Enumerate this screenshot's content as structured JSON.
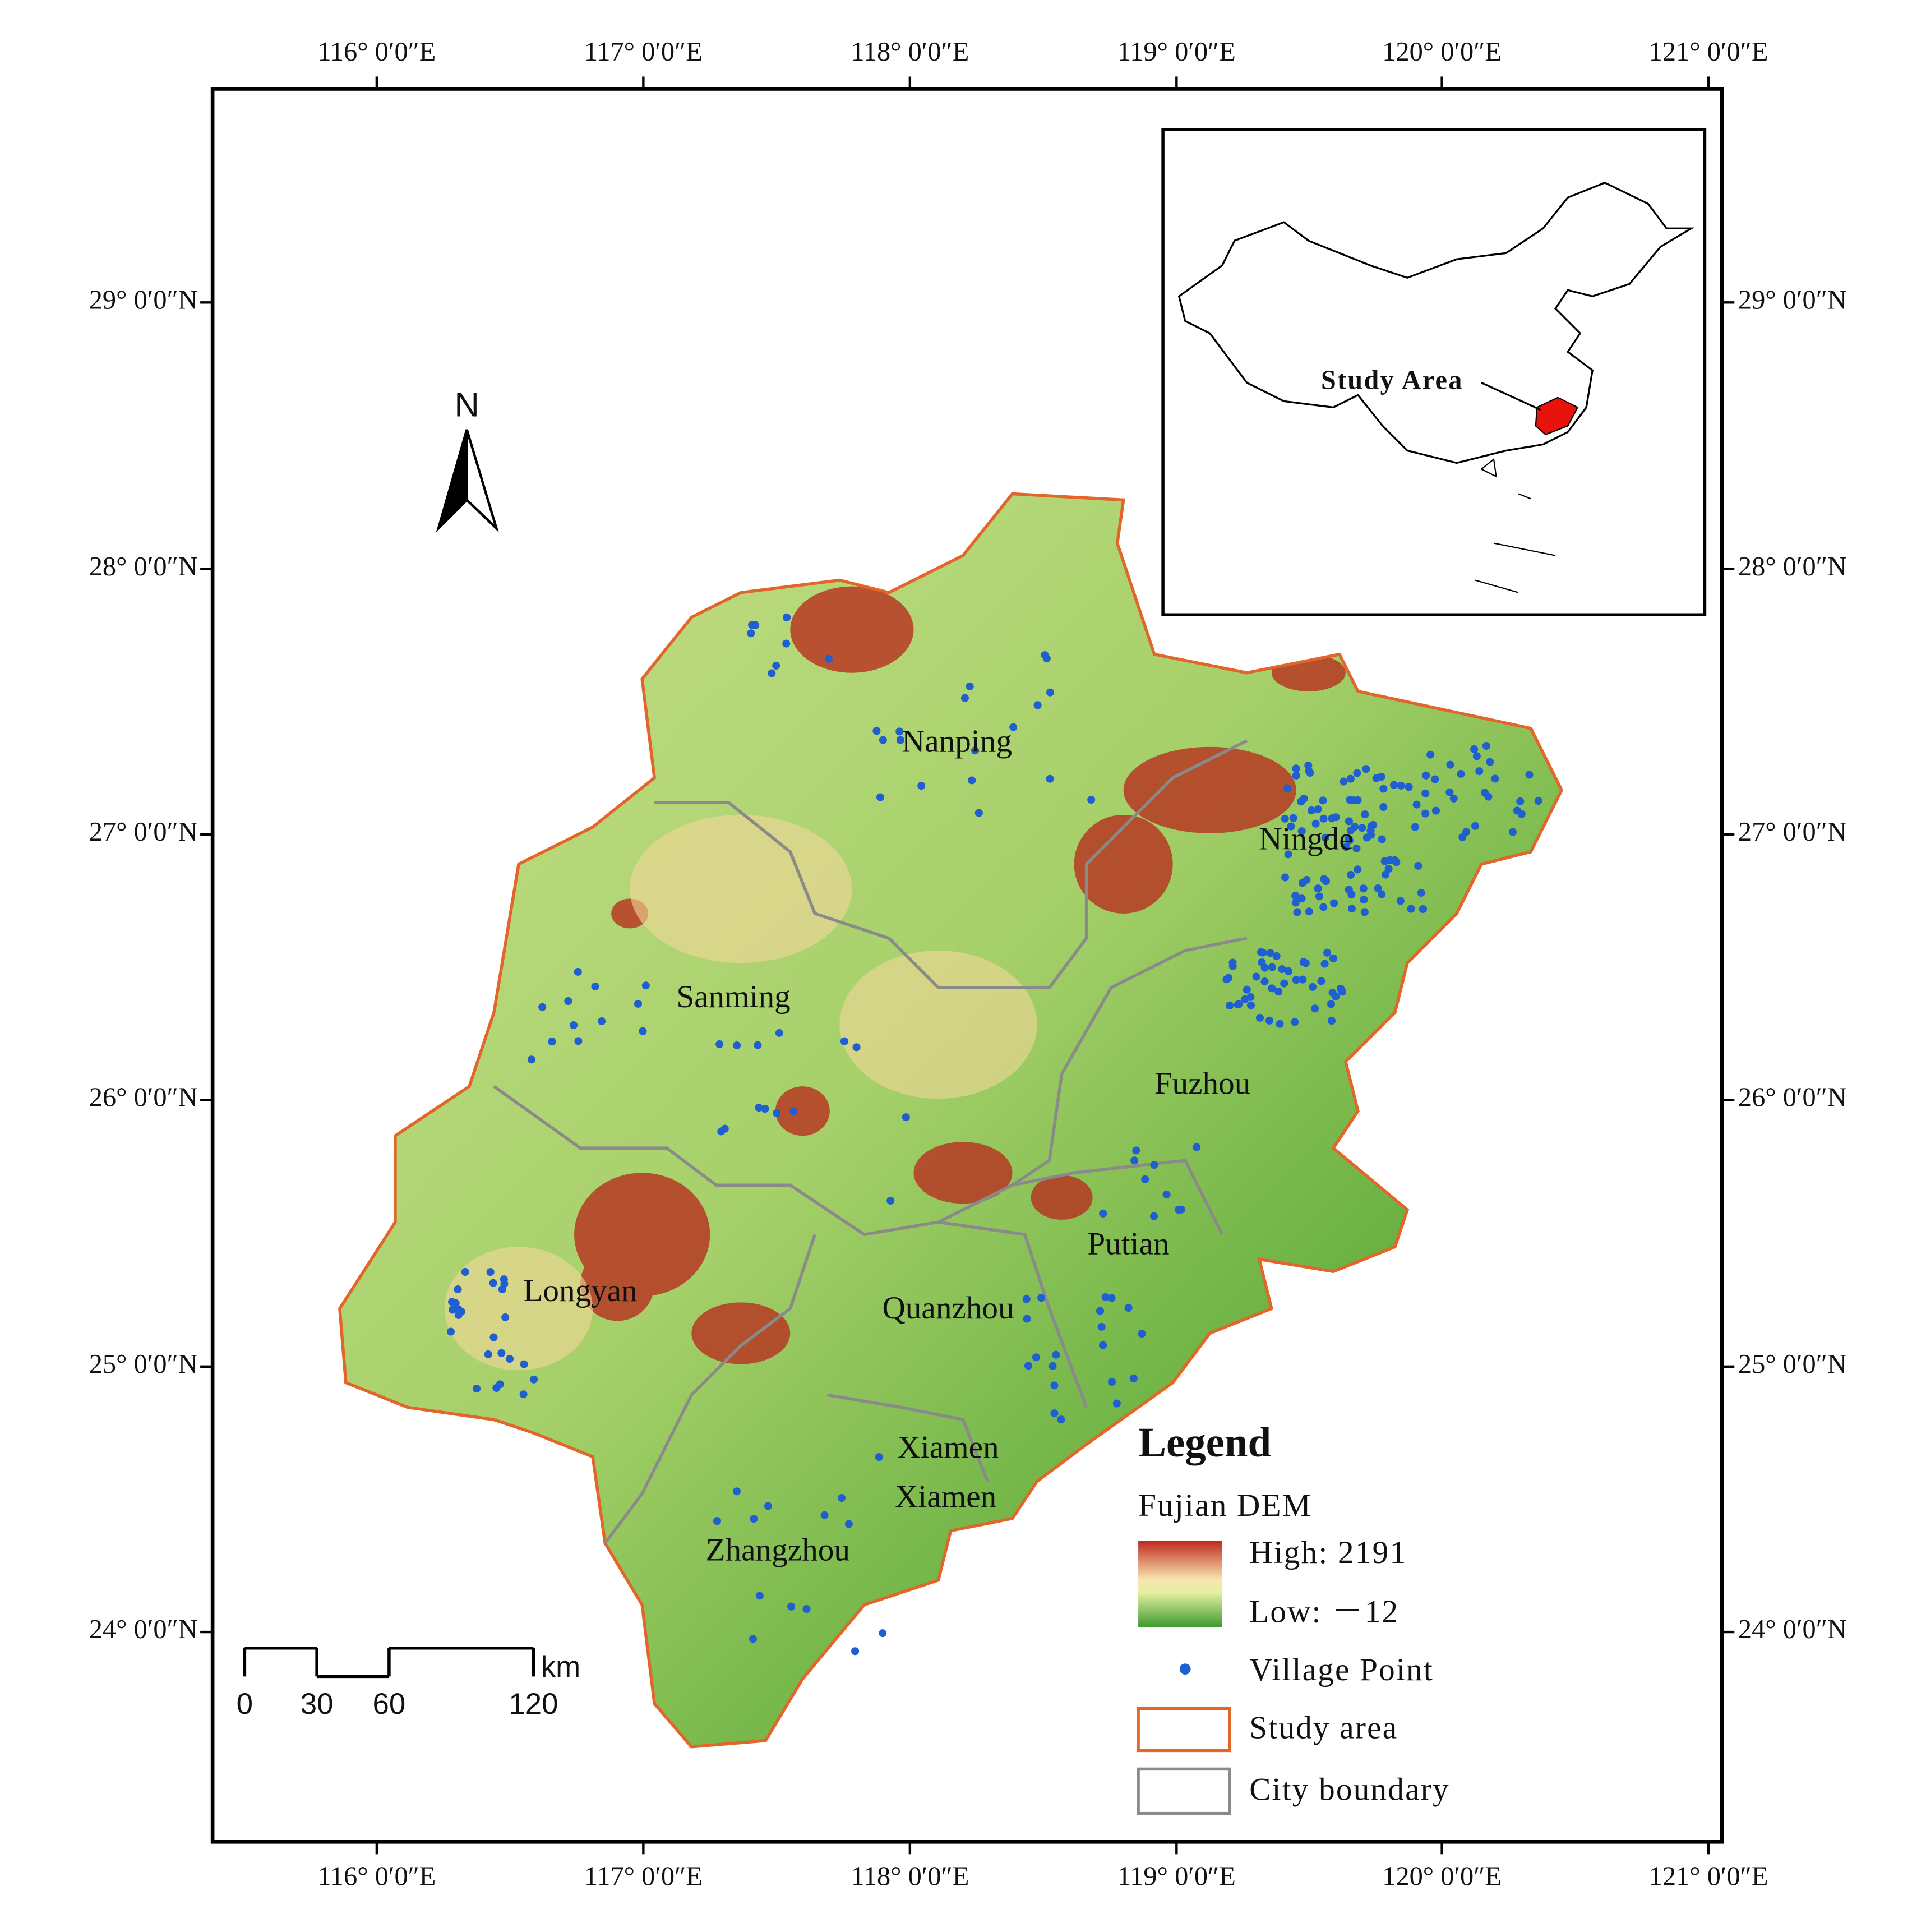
{
  "lon_labels": [
    "116° 0′0″E",
    "117° 0′0″E",
    "118° 0′0″E",
    "119° 0′0″E",
    "120° 0′0″E",
    "121° 0′0″E"
  ],
  "lat_labels": [
    "29° 0′0″N",
    "28° 0′0″N",
    "27° 0′0″N",
    "26° 0′0″N",
    "25° 0′0″N",
    "24° 0′0″N"
  ],
  "north_arrow": "N",
  "cities": [
    "Nanping",
    "Ningde",
    "Sanming",
    "Fuzhou",
    "Putian",
    "Longyan",
    "Quanzhou",
    "Xiamen",
    "Xiamen",
    "Zhangzhou"
  ],
  "inset": {
    "label": "Study Area"
  },
  "scale_bar": {
    "unit": "km",
    "ticks": [
      0,
      30,
      60,
      120
    ]
  },
  "legend": {
    "title": "Legend",
    "dem_title": "Fujian DEM",
    "high": "High: 2191",
    "low": "Low: －12",
    "village": "Village Point",
    "study_area": "Study area",
    "city_boundary": "City boundary"
  }
}
